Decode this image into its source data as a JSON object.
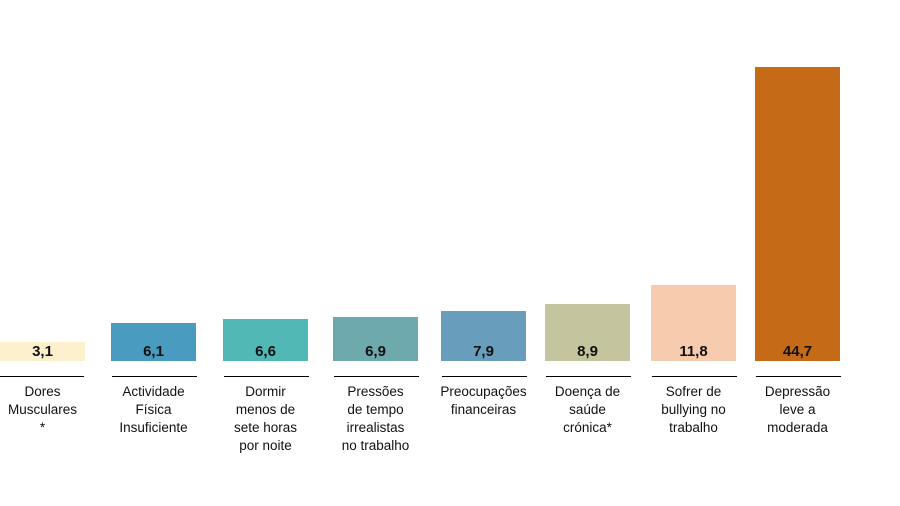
{
  "chart_data": {
    "type": "bar",
    "categories": [
      "Dores Musculares *",
      "Actividade Física Insuficiente",
      "Dormir menos de sete horas por noite",
      "Pressões de tempo irrealistas no trabalho",
      "Preocupações financeiras",
      "Doença de saúde crónica*",
      "Sofrer de bullying no trabalho",
      "Depressão leve a moderada"
    ],
    "category_lines": [
      [
        "Dores",
        "Musculares",
        "*"
      ],
      [
        "Actividade",
        "Física",
        "Insuficiente"
      ],
      [
        "Dormir",
        "menos de",
        "sete horas",
        "por noite"
      ],
      [
        "Pressões",
        "de tempo",
        "irrealistas",
        "no trabalho"
      ],
      [
        "Preocupações",
        "financeiras"
      ],
      [
        "Doença de",
        "saúde",
        "crónica*"
      ],
      [
        "Sofrer de",
        "bullying no",
        "trabalho"
      ],
      [
        "Depressão",
        "leve a",
        "moderada"
      ]
    ],
    "values": [
      3.1,
      6.1,
      6.6,
      6.9,
      7.9,
      8.9,
      11.8,
      44.7
    ],
    "value_labels": [
      "3,1",
      "6,1",
      "6,6",
      "6,9",
      "7,9",
      "8,9",
      "11,8",
      "44,7"
    ],
    "colors": [
      "#FDF0CC",
      "#4A9BC0",
      "#52B8B6",
      "#6EA9AE",
      "#689DBC",
      "#C4C49E",
      "#F7CBAE",
      "#C56B17"
    ],
    "title": "",
    "xlabel": "",
    "ylabel": "",
    "grid": false,
    "legend": "none"
  }
}
